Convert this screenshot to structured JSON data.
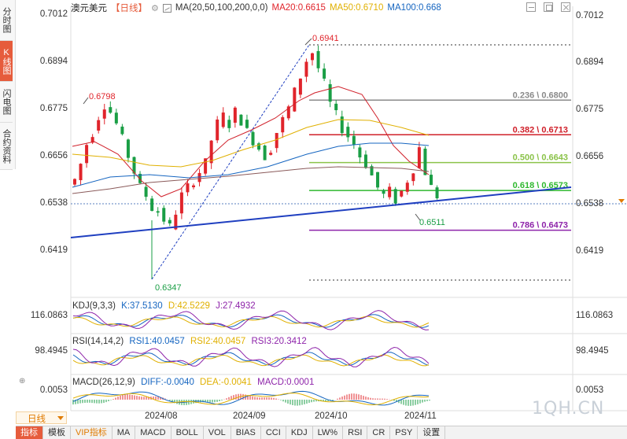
{
  "header": {
    "symbol": "澳元美元",
    "period": "【日线】",
    "gear": "⚙",
    "ma_params": "MA(20,50,100,200,0,0)",
    "ma20": "MA20:0.6615",
    "ma50": "MA50:0.6710",
    "ma100": "MA100:0.668"
  },
  "left_tabs": [
    {
      "label": "分时图",
      "active": false
    },
    {
      "label": "K线图",
      "active": true
    },
    {
      "label": "闪电图",
      "active": false
    },
    {
      "label": "合约资料",
      "active": false
    }
  ],
  "y_axis": {
    "left": [
      "0.7012",
      "0.6894",
      "0.6775",
      "0.6656",
      "0.6538",
      "0.6419"
    ],
    "right": [
      "0.7012",
      "0.6894",
      "0.6775",
      "0.6656",
      "0.6538",
      "0.6419"
    ]
  },
  "price_labels": {
    "high": "0.6941",
    "prev_high": "0.6798",
    "low": "0.6347",
    "recent_low": "0.6511"
  },
  "fib_levels": [
    {
      "label": "0.236 \\ 0.6800",
      "price": 0.68,
      "color": "#8a8a8a"
    },
    {
      "label": "0.382 \\ 0.6713",
      "price": 0.6713,
      "color": "#d0202a"
    },
    {
      "label": "0.500 \\ 0.6643",
      "price": 0.6643,
      "color": "#8bc34a"
    },
    {
      "label": "0.618 \\ 0.6573",
      "price": 0.6573,
      "color": "#2fb82f"
    },
    {
      "label": "0.786 \\ 0.6473",
      "price": 0.6473,
      "color": "#8e24aa"
    }
  ],
  "kdj": {
    "title": "KDJ(9,3,3)",
    "k": "K:37.5130",
    "d": "D:42.5229",
    "j": "J:27.4932",
    "axis": "116.0863"
  },
  "rsi": {
    "title": "RSI(14,14,2)",
    "r1": "RSI1:40.0457",
    "r2": "RSI2:40.0457",
    "r3": "RSI3:20.3412",
    "axis": "98.4945"
  },
  "macd": {
    "title": "MACD(26,12,9)",
    "diff": "DIFF:-0.0040",
    "dea": "DEA:-0.0041",
    "macd": "MACD:0.0001",
    "axis": "0.0053"
  },
  "dates": [
    "2024/08",
    "2024/09",
    "2024/10",
    "2024/11"
  ],
  "period_button": "日线",
  "bottom_tabs": [
    {
      "label": "指标",
      "active": true
    },
    {
      "label": "模板"
    },
    {
      "label": "VIP指标",
      "vip": true
    },
    {
      "label": "MA"
    },
    {
      "label": "MACD"
    },
    {
      "label": "BOLL"
    },
    {
      "label": "VOL"
    },
    {
      "label": "BIAS"
    },
    {
      "label": "CCI"
    },
    {
      "label": "KDJ"
    },
    {
      "label": "LW%"
    },
    {
      "label": "RSI"
    },
    {
      "label": "CR"
    },
    {
      "label": "PSY"
    },
    {
      "label": "设置"
    }
  ],
  "watermark": "1QH.CN",
  "colors": {
    "up": "#e0242b",
    "down": "#1a9e45",
    "accent": "#e65c3c",
    "trendline": "#1f3fc0"
  }
}
